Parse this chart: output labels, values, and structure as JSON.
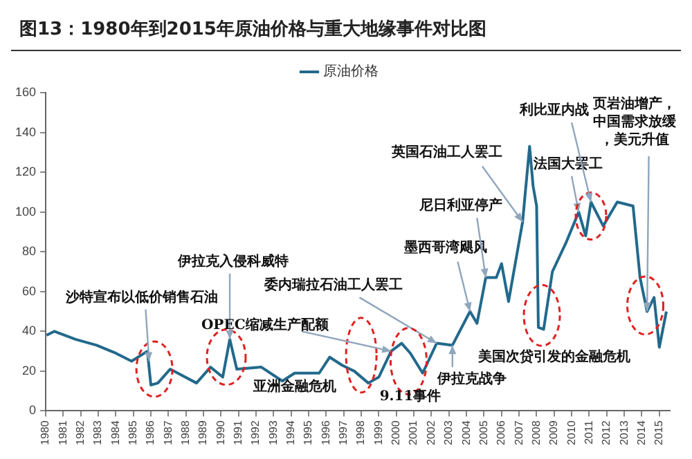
{
  "chart_data": {
    "type": "line",
    "title": "图13：1980年到2015年原油价格与重大地缘事件对比图",
    "x": [
      1980.05,
      1980.5,
      1981.7,
      1982.9,
      1984.0,
      1984.9,
      1985.8,
      1986.0,
      1986.4,
      1987.1,
      1988.6,
      1989.4,
      1990.1,
      1990.5,
      1990.9,
      1992.3,
      1993.5,
      1994.2,
      1995.6,
      1996.2,
      1996.9,
      1997.6,
      1998.4,
      1999.0,
      1999.7,
      2000.3,
      2000.8,
      2001.5,
      2002.3,
      2003.2,
      2004.2,
      2004.6,
      2005.1,
      2005.7,
      2006.0,
      2006.4,
      2007.2,
      2007.6,
      2007.8,
      2008.0,
      2008.1,
      2008.4,
      2008.9,
      2009.7,
      2010.4,
      2010.8,
      2011.1,
      2011.8,
      2012.6,
      2013.5,
      2013.9,
      2014.3,
      2014.7,
      2015.0,
      2015.4
    ],
    "series": [
      {
        "name": "原油价格",
        "color": "#22698c",
        "values": [
          38,
          40,
          36,
          33,
          29,
          25,
          30,
          13,
          14,
          21,
          14,
          22,
          17,
          36,
          21,
          22,
          15,
          19,
          19,
          27,
          23,
          20,
          14,
          17,
          30,
          34,
          29,
          19,
          34,
          33,
          50,
          44,
          67,
          67,
          74,
          55,
          95,
          133,
          113,
          103,
          42,
          41,
          70,
          85,
          100,
          88,
          105,
          93,
          105,
          103,
          67,
          50,
          57,
          32,
          50
        ]
      }
    ],
    "xlim": [
      1980,
      2015.6
    ],
    "xticks": [
      1980,
      1981,
      1982,
      1983,
      1984,
      1985,
      1986,
      1987,
      1988,
      1989,
      1990,
      1991,
      1992,
      1993,
      1994,
      1995,
      1996,
      1997,
      1998,
      1999,
      2000,
      2001,
      2002,
      2003,
      2004,
      2005,
      2006,
      2007,
      2008,
      2009,
      2010,
      2011,
      2012,
      2013,
      2014,
      2015
    ],
    "ylim": [
      0,
      160
    ],
    "yticks": [
      0,
      20,
      40,
      60,
      80,
      100,
      120,
      140,
      160
    ],
    "grid": false,
    "legend": "top",
    "marker": "none",
    "line_style": "solid",
    "annotations": [
      {
        "text": "沙特宣布以低价销售石油",
        "x": 1985.9,
        "y": 25
      },
      {
        "text": "伊拉克入侵科威特",
        "x": 1990.5,
        "y": 36
      },
      "亚洲金融危机",
      {
        "text": "OPEC缩减生产配额",
        "x": 1999.7,
        "y": 30
      },
      {
        "text": "委内瑞拉石油工人罢工",
        "x": 2002.3,
        "y": 34
      },
      "9.11事件",
      {
        "text": "伊拉克战争",
        "x": 2003.2,
        "y": 33
      },
      {
        "text": "墨西哥湾飓风",
        "x": 2004.2,
        "y": 50
      },
      {
        "text": "尼日利亚停产",
        "x": 2005.1,
        "y": 67
      },
      {
        "text": "英国石油工人罢工",
        "x": 2007.2,
        "y": 95
      },
      "美国次贷引发的金融危机",
      {
        "text": "法国大罢工",
        "x": 2010.4,
        "y": 100
      },
      {
        "text": "利比亚内战",
        "x": 2011.1,
        "y": 105
      },
      {
        "text": "页岩油增产，中国需求放缓，美元升值",
        "x": 2014.3,
        "y": 50
      }
    ]
  }
}
